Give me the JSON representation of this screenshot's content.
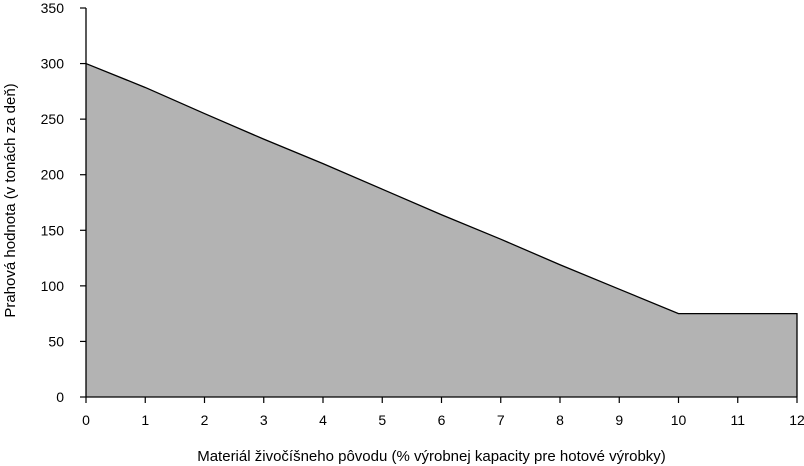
{
  "chart_data": {
    "type": "area",
    "title": "",
    "xlabel": "Materiál živočíšneho pôvodu (% výrobnej kapacity pre hotové výrobky)",
    "ylabel": "Prahová hodnota (v tonách za deň)",
    "xlim": [
      0,
      12
    ],
    "ylim": [
      0,
      350
    ],
    "x_ticks": [
      0,
      1,
      2,
      3,
      4,
      5,
      6,
      7,
      8,
      9,
      10,
      11,
      12
    ],
    "y_ticks": [
      0,
      50,
      100,
      150,
      200,
      250,
      300,
      350
    ],
    "grid": false,
    "legend": "none",
    "series": [
      {
        "x": [
          0,
          1,
          2,
          3,
          4,
          5,
          6,
          7,
          8,
          9,
          10,
          11,
          12
        ],
        "y": [
          300,
          278.5,
          255,
          232,
          210,
          187,
          164,
          142,
          119,
          97,
          75,
          75,
          75
        ],
        "fill_color": "#b3b3b3",
        "line_color": "#000000"
      }
    ]
  }
}
